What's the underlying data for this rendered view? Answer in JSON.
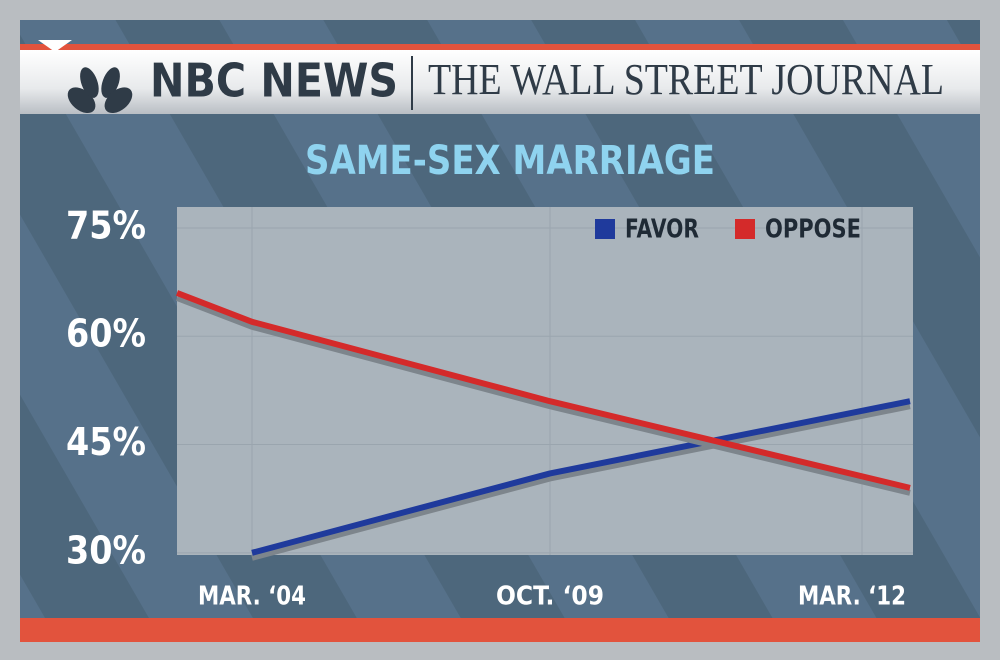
{
  "header": {
    "left": "NBC NEWS",
    "right": "THE WALL STREET JOURNAL"
  },
  "chart_data": {
    "type": "line",
    "title": "SAME-SEX MARRIAGE",
    "categories": [
      null,
      "MAR. ‘04",
      "OCT. ‘09",
      "MAR. ‘12"
    ],
    "series": [
      {
        "name": "FAVOR",
        "color": "#1f3a9c",
        "values": [
          null,
          30,
          41,
          51
        ]
      },
      {
        "name": "OPPOSE",
        "color": "#d42a2a",
        "values": [
          66,
          62,
          51,
          39
        ]
      }
    ],
    "ylim": [
      29.7,
      77.9
    ],
    "yticks": [
      {
        "value": 30,
        "label": "30%"
      },
      {
        "value": 45,
        "label": "45%"
      },
      {
        "value": 60,
        "label": "60%"
      },
      {
        "value": 75,
        "label": "75%"
      }
    ],
    "grid": true,
    "legend": "top-right"
  }
}
